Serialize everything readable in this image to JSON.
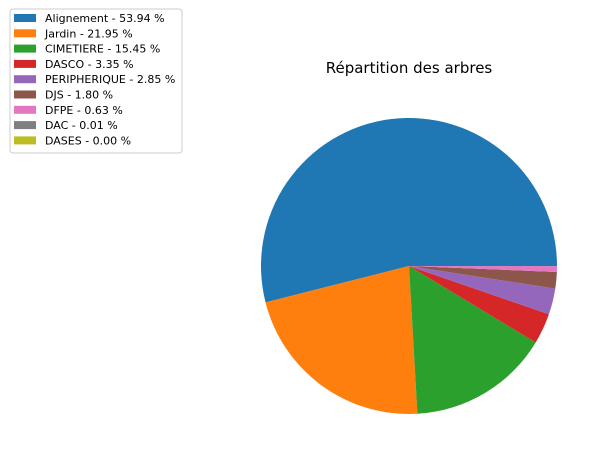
{
  "chart_data": {
    "type": "pie",
    "title": "Répartition des arbres",
    "legend_position": "top-left",
    "slices": [
      {
        "label": "Alignement - 53.94 %",
        "value": 53.94,
        "color": "#1f77b4"
      },
      {
        "label": "Jardin - 21.95 %",
        "value": 21.95,
        "color": "#ff7f0e"
      },
      {
        "label": "CIMETIERE - 15.45 %",
        "value": 15.45,
        "color": "#2ca02c"
      },
      {
        "label": "DASCO - 3.35 %",
        "value": 3.35,
        "color": "#d62728"
      },
      {
        "label": "PERIPHERIQUE - 2.85 %",
        "value": 2.85,
        "color": "#9467bd"
      },
      {
        "label": "DJS - 1.80 %",
        "value": 1.8,
        "color": "#8c564b"
      },
      {
        "label": "DFPE - 0.63 %",
        "value": 0.63,
        "color": "#e377c2"
      },
      {
        "label": "DAC - 0.01 %",
        "value": 0.01,
        "color": "#7f7f7f"
      },
      {
        "label": "DASES - 0.00 %",
        "value": 0.0,
        "color": "#bcbd22"
      }
    ]
  }
}
